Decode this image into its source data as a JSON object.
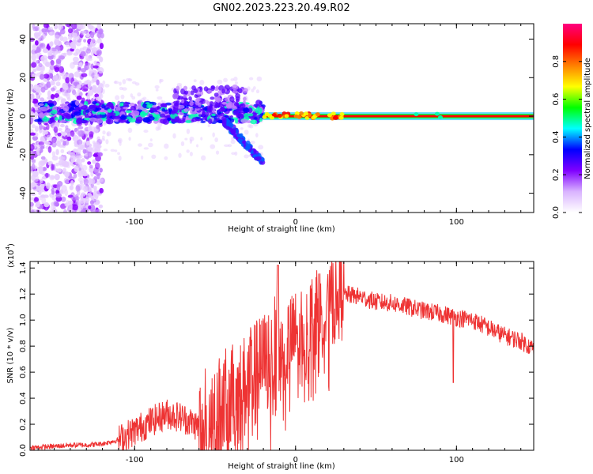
{
  "title": "GN02.2023.223.20.49.R02",
  "chart_data": [
    {
      "type": "heatmap",
      "xlabel": "Height of straight line (km)",
      "ylabel": "Frequency (Hz)",
      "xlim": [
        -165,
        148
      ],
      "ylim": [
        -50,
        48
      ],
      "xticks": [
        -100,
        0,
        100
      ],
      "yticks": [
        -40,
        -20,
        0,
        20,
        40
      ],
      "grid": false,
      "colorbar": {
        "label": "Normalized spectral amplitude",
        "range": [
          0.0,
          1.0
        ],
        "ticks": [
          "0.0",
          "0.2",
          "0.4",
          "0.6",
          "0.8"
        ],
        "colors": [
          "#ffffff",
          "#d9b3ff",
          "#8000ff",
          "#0000ff",
          "#00ffff",
          "#00ff00",
          "#ffff00",
          "#ff8000",
          "#ff0000",
          "#ff0080"
        ]
      },
      "description_features": {
        "constant_tone_start_km": -20,
        "constant_tone_freq_hz": 0,
        "noise_band_km": [
          -165,
          -120
        ]
      }
    },
    {
      "type": "line",
      "xlabel": "Height of straight line (km)",
      "ylabel": "SNR (10 * v/v)",
      "y_multiplier": "(x10",
      "y_multiplier_exp": "4",
      "y_multiplier_close": ")",
      "xlim": [
        -165,
        148
      ],
      "ylim": [
        0.0,
        1.45
      ],
      "xticks": [
        -100,
        0,
        100
      ],
      "yticks": [
        "0.0",
        "0.2",
        "0.4",
        "0.6",
        "0.8",
        "1.0",
        "1.2",
        "1.4"
      ],
      "grid": false,
      "color": "#ee3333",
      "series": [
        {
          "x": [
            -165,
            -150,
            -140,
            -130,
            -120,
            -110,
            -100,
            -90,
            -80,
            -70,
            -60,
            -50,
            -40,
            -30,
            -20,
            -15,
            -10,
            -5,
            0,
            10,
            20,
            30,
            40,
            50,
            60,
            70,
            80,
            90,
            100,
            110,
            120,
            130,
            140,
            148
          ],
          "y": [
            0.02,
            0.03,
            0.04,
            0.04,
            0.05,
            0.08,
            0.15,
            0.22,
            0.28,
            0.25,
            0.18,
            0.3,
            0.4,
            0.5,
            0.65,
            0.75,
            0.78,
            0.82,
            0.88,
            1.0,
            1.1,
            1.2,
            1.18,
            1.14,
            1.13,
            1.1,
            1.07,
            1.05,
            1.02,
            1.0,
            0.94,
            0.88,
            0.84,
            0.78
          ]
        }
      ]
    }
  ]
}
